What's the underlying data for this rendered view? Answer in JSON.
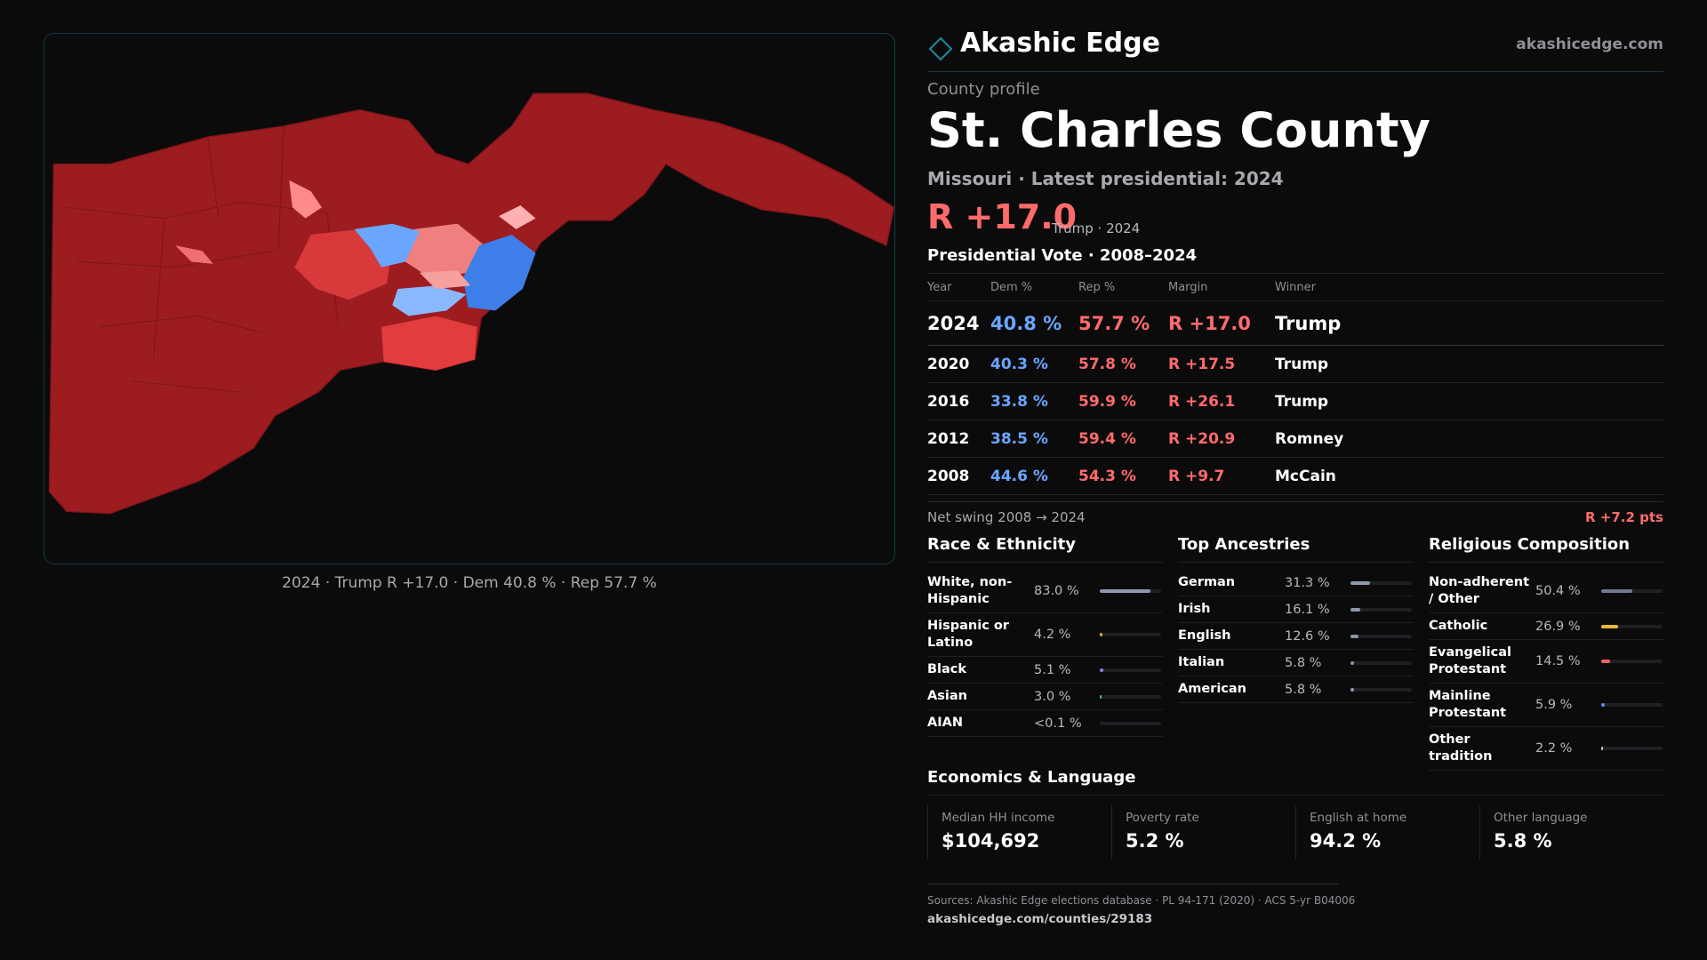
{
  "header": {
    "brand": "Akashic Edge",
    "domain": "akashicedge.com"
  },
  "map": {
    "caption": "2024 · Trump R +17.0 · Dem 40.8 % · Rep 57.7 %"
  },
  "profile": {
    "eyebrow": "County profile",
    "title": "St. Charles County",
    "subtitle": "Missouri · Latest presidential: 2024",
    "margin": "R +17.0",
    "margin_note": "Trump · 2024"
  },
  "vote_table": {
    "title": "Presidential Vote · 2008–2024",
    "columns": [
      "Year",
      "Dem %",
      "Rep %",
      "Margin",
      "Winner"
    ],
    "rows": [
      [
        "2024",
        "40.8 %",
        "57.7 %",
        "R +17.0",
        "Trump"
      ],
      [
        "2020",
        "40.3 %",
        "57.8 %",
        "R +17.5",
        "Trump"
      ],
      [
        "2016",
        "33.8 %",
        "59.9 %",
        "R +26.1",
        "Trump"
      ],
      [
        "2012",
        "38.5 %",
        "59.4 %",
        "R +20.9",
        "Romney"
      ],
      [
        "2008",
        "44.6 %",
        "54.3 %",
        "R +9.7",
        "McCain"
      ]
    ],
    "swing_label": "Net swing 2008 → 2024",
    "swing_value": "R +7.2 pts"
  },
  "sections": [
    {
      "title": "Race & Ethnicity",
      "items": [
        {
          "label": "White, non-Hispanic",
          "value": 83.0,
          "value_label": "83.0 %",
          "color": "#8e97ab"
        },
        {
          "label": "Hispanic or Latino",
          "value": 4.2,
          "value_label": "4.2 %",
          "color": "#e0a83a"
        },
        {
          "label": "Black",
          "value": 5.1,
          "value_label": "5.1 %",
          "color": "#8b7ff0"
        },
        {
          "label": "Asian",
          "value": 3.0,
          "value_label": "3.0 %",
          "color": "#3fb8a0"
        },
        {
          "label": "AIAN",
          "value": 0.1,
          "value_label": "<0.1 %",
          "color": "#c98a4a"
        }
      ]
    },
    {
      "title": "Top Ancestries",
      "items": [
        {
          "label": "German",
          "value": 31.3,
          "value_label": "31.3 %",
          "color": "#8e97ab"
        },
        {
          "label": "Irish",
          "value": 16.1,
          "value_label": "16.1 %",
          "color": "#8e97ab"
        },
        {
          "label": "English",
          "value": 12.6,
          "value_label": "12.6 %",
          "color": "#8e97ab"
        },
        {
          "label": "Italian",
          "value": 5.8,
          "value_label": "5.8 %",
          "color": "#8e97ab"
        },
        {
          "label": "American",
          "value": 5.8,
          "value_label": "5.8 %",
          "color": "#8e97ab"
        }
      ]
    },
    {
      "title": "Religious Composition",
      "items": [
        {
          "label": "Non-adherent / Other",
          "value": 50.4,
          "value_label": "50.4 %",
          "color": "#6f7a90"
        },
        {
          "label": "Catholic",
          "value": 26.9,
          "value_label": "26.9 %",
          "color": "#e8b73a"
        },
        {
          "label": "Evangelical Protestant",
          "value": 14.5,
          "value_label": "14.5 %",
          "color": "#e86464"
        },
        {
          "label": "Mainline Protestant",
          "value": 5.9,
          "value_label": "5.9 %",
          "color": "#5b8fe8"
        },
        {
          "label": "Other tradition",
          "value": 2.2,
          "value_label": "2.2 %",
          "color": "#c8c8d0"
        }
      ]
    }
  ],
  "economics": {
    "title": "Economics & Language",
    "items": [
      {
        "label": "Median HH income",
        "value": "$104,692"
      },
      {
        "label": "Poverty rate",
        "value": "5.2 %"
      },
      {
        "label": "English at home",
        "value": "94.2 %"
      },
      {
        "label": "Other language",
        "value": "5.8 %"
      }
    ]
  },
  "footer": {
    "sources": "Sources: Akashic Edge elections database · PL 94-171 (2020) · ACS 5-yr B04006",
    "url": "akashicedge.com/counties/29183"
  }
}
